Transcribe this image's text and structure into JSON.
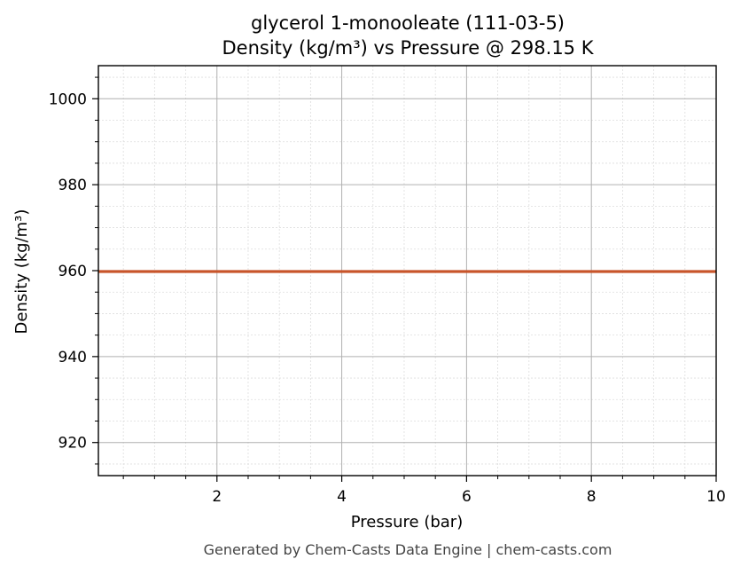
{
  "chart_data": {
    "type": "line",
    "title": "glycerol 1-monooleate (111-03-5)",
    "subtitle": "Density (kg/m³) vs Pressure @ 298.15 K",
    "xlabel": "Pressure (bar)",
    "ylabel": "Density (kg/m³)",
    "xlim": [
      0.1,
      10
    ],
    "ylim": [
      912.3,
      1007.7
    ],
    "x_ticks": [
      2,
      4,
      6,
      8,
      10
    ],
    "y_ticks": [
      920,
      940,
      960,
      980,
      1000
    ],
    "x_tick_labels": [
      "2",
      "4",
      "6",
      "8",
      "10"
    ],
    "y_tick_labels": [
      "920",
      "940",
      "960",
      "980",
      "1000"
    ],
    "x_minor_step": 0.5,
    "y_minor_step": 5,
    "grid": true,
    "series": [
      {
        "color": "#c8552a",
        "x": [
          0.1,
          10
        ],
        "y": [
          959.8,
          959.8
        ]
      }
    ]
  },
  "footer": "Generated by Chem-Casts Data Engine | chem-casts.com"
}
